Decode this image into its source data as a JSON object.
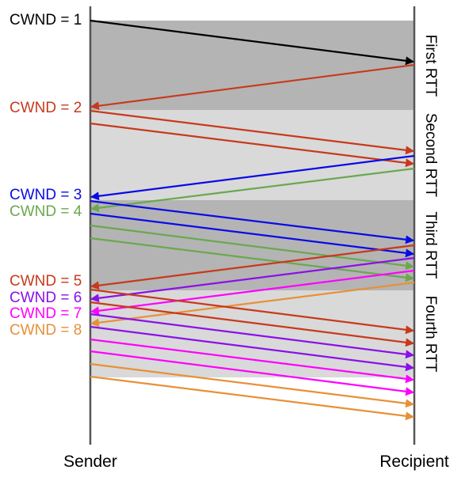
{
  "colors": {
    "black": "#000000",
    "red": "#c8391c",
    "blue": "#0a0ae6",
    "green": "#6aa84f",
    "purple": "#8b10e8",
    "magenta": "#ff00ff",
    "orange": "#e69138",
    "band_dark": "#b4b4b4",
    "band_light": "#d9d9d9",
    "timeline": "#555555"
  },
  "endpoints": {
    "sender": "Sender",
    "recipient": "Recipient"
  },
  "rtts": [
    "First RTT",
    "Second RTT",
    "Third RTT",
    "Fourth RTT"
  ],
  "cwnd_labels": [
    {
      "text": "CWND = 1",
      "color": "black"
    },
    {
      "text": "CWND = 2",
      "color": "red"
    },
    {
      "text": "CWND = 3",
      "color": "blue"
    },
    {
      "text": "CWND = 4",
      "color": "green"
    },
    {
      "text": "CWND = 5",
      "color": "red"
    },
    {
      "text": "CWND = 6",
      "color": "purple"
    },
    {
      "text": "CWND = 7",
      "color": "magenta"
    },
    {
      "text": "CWND = 8",
      "color": "orange"
    }
  ]
}
